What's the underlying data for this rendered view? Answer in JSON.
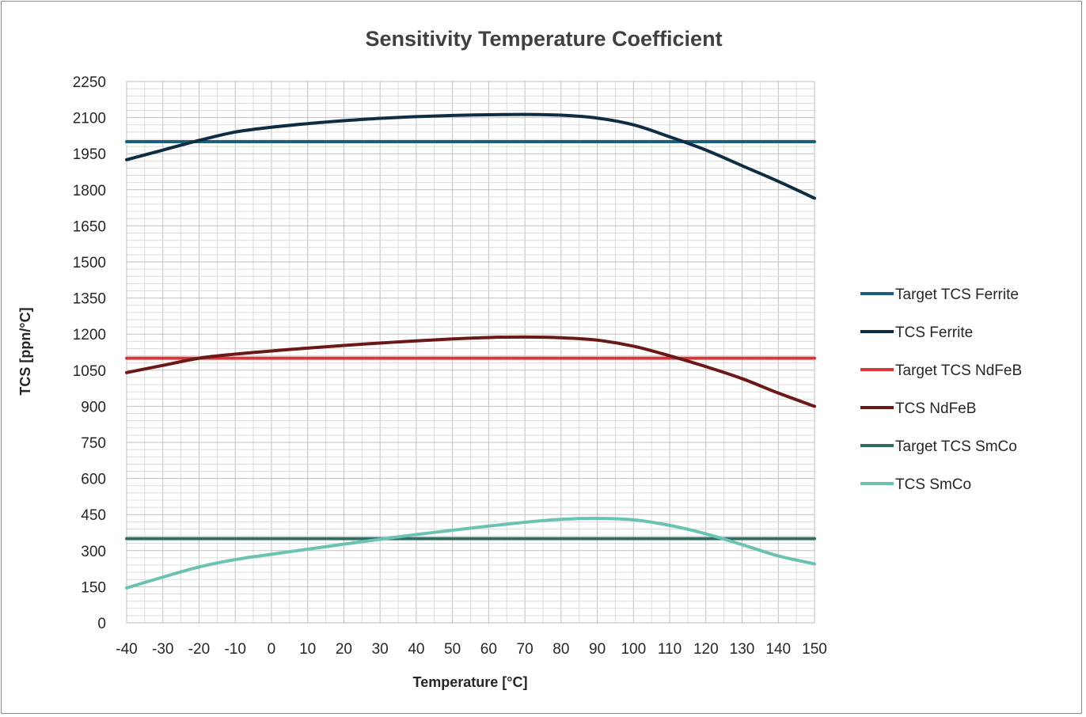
{
  "chart_data": {
    "type": "line",
    "title": "Sensitivity Temperature Coefficient",
    "xlabel": "Temperature [°C]",
    "ylabel": "TCS [ppn/°C]",
    "x": [
      -40,
      -30,
      -20,
      -10,
      0,
      10,
      20,
      30,
      40,
      50,
      60,
      70,
      80,
      90,
      100,
      110,
      120,
      130,
      140,
      150
    ],
    "x_ticks": [
      "-40",
      "-30",
      "-20",
      "-10",
      "0",
      "10",
      "20",
      "30",
      "40",
      "50",
      "60",
      "70",
      "80",
      "90",
      "100",
      "110",
      "120",
      "130",
      "140",
      "150"
    ],
    "xlim": [
      -40,
      150
    ],
    "y_ticks": [
      "0",
      "150",
      "300",
      "450",
      "600",
      "750",
      "900",
      "1050",
      "1200",
      "1350",
      "1500",
      "1650",
      "1800",
      "1950",
      "2100",
      "2250"
    ],
    "ylim": [
      0,
      2250
    ],
    "grid": true,
    "legend_position": "right",
    "series": [
      {
        "name": "Target TCS Ferrite",
        "color": "#1b5e7e",
        "values": [
          2000,
          2000,
          2000,
          2000,
          2000,
          2000,
          2000,
          2000,
          2000,
          2000,
          2000,
          2000,
          2000,
          2000,
          2000,
          2000,
          2000,
          2000,
          2000,
          2000
        ]
      },
      {
        "name": "TCS Ferrite",
        "color": "#0f2d42",
        "values": [
          1925,
          1965,
          2005,
          2040,
          2060,
          2075,
          2087,
          2097,
          2104,
          2109,
          2112,
          2113,
          2110,
          2098,
          2070,
          2020,
          1965,
          1900,
          1835,
          1765
        ]
      },
      {
        "name": "Target TCS NdFeB",
        "color": "#d9383a",
        "values": [
          1100,
          1100,
          1100,
          1100,
          1100,
          1100,
          1100,
          1100,
          1100,
          1100,
          1100,
          1100,
          1100,
          1100,
          1100,
          1100,
          1100,
          1100,
          1100,
          1100
        ]
      },
      {
        "name": "TCS NdFeB",
        "color": "#6b1818",
        "values": [
          1040,
          1070,
          1100,
          1117,
          1130,
          1142,
          1153,
          1163,
          1172,
          1180,
          1186,
          1188,
          1185,
          1175,
          1150,
          1110,
          1065,
          1015,
          955,
          900
        ]
      },
      {
        "name": "Target TCS SmCo",
        "color": "#2f6e5e",
        "values": [
          350,
          350,
          350,
          350,
          350,
          350,
          350,
          350,
          350,
          350,
          350,
          350,
          350,
          350,
          350,
          350,
          350,
          350,
          350,
          350
        ]
      },
      {
        "name": "TCS SmCo",
        "color": "#6cc2b2",
        "values": [
          145,
          190,
          232,
          263,
          285,
          306,
          327,
          347,
          367,
          385,
          402,
          418,
          430,
          434,
          428,
          405,
          370,
          325,
          278,
          245
        ]
      }
    ]
  }
}
